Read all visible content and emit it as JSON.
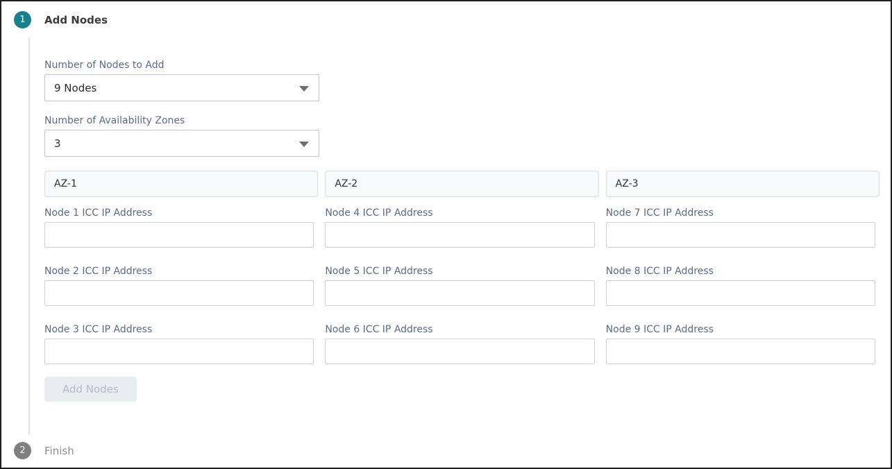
{
  "colors": {
    "accent": "#16808F",
    "step_inactive": "#7f7f7f"
  },
  "steps": [
    {
      "number": "1",
      "label": "Add Nodes"
    },
    {
      "number": "2",
      "label": "Finish"
    }
  ],
  "form": {
    "nodes_count": {
      "label": "Number of Nodes to Add",
      "value": "9 Nodes"
    },
    "az_count": {
      "label": "Number of Availability Zones",
      "value": "3"
    },
    "zones": [
      {
        "header": "AZ-1",
        "fields": [
          {
            "label": "Node 1 ICC IP Address",
            "value": ""
          },
          {
            "label": "Node 2 ICC IP Address",
            "value": ""
          },
          {
            "label": "Node 3 ICC IP Address",
            "value": ""
          }
        ]
      },
      {
        "header": "AZ-2",
        "fields": [
          {
            "label": "Node 4 ICC IP Address",
            "value": ""
          },
          {
            "label": "Node 5 ICC IP Address",
            "value": ""
          },
          {
            "label": "Node 6 ICC IP Address",
            "value": ""
          }
        ]
      },
      {
        "header": "AZ-3",
        "fields": [
          {
            "label": "Node 7 ICC IP Address",
            "value": ""
          },
          {
            "label": "Node 8 ICC IP Address",
            "value": ""
          },
          {
            "label": "Node 9 ICC IP Address",
            "value": ""
          }
        ]
      }
    ],
    "submit_label": "Add Nodes"
  }
}
